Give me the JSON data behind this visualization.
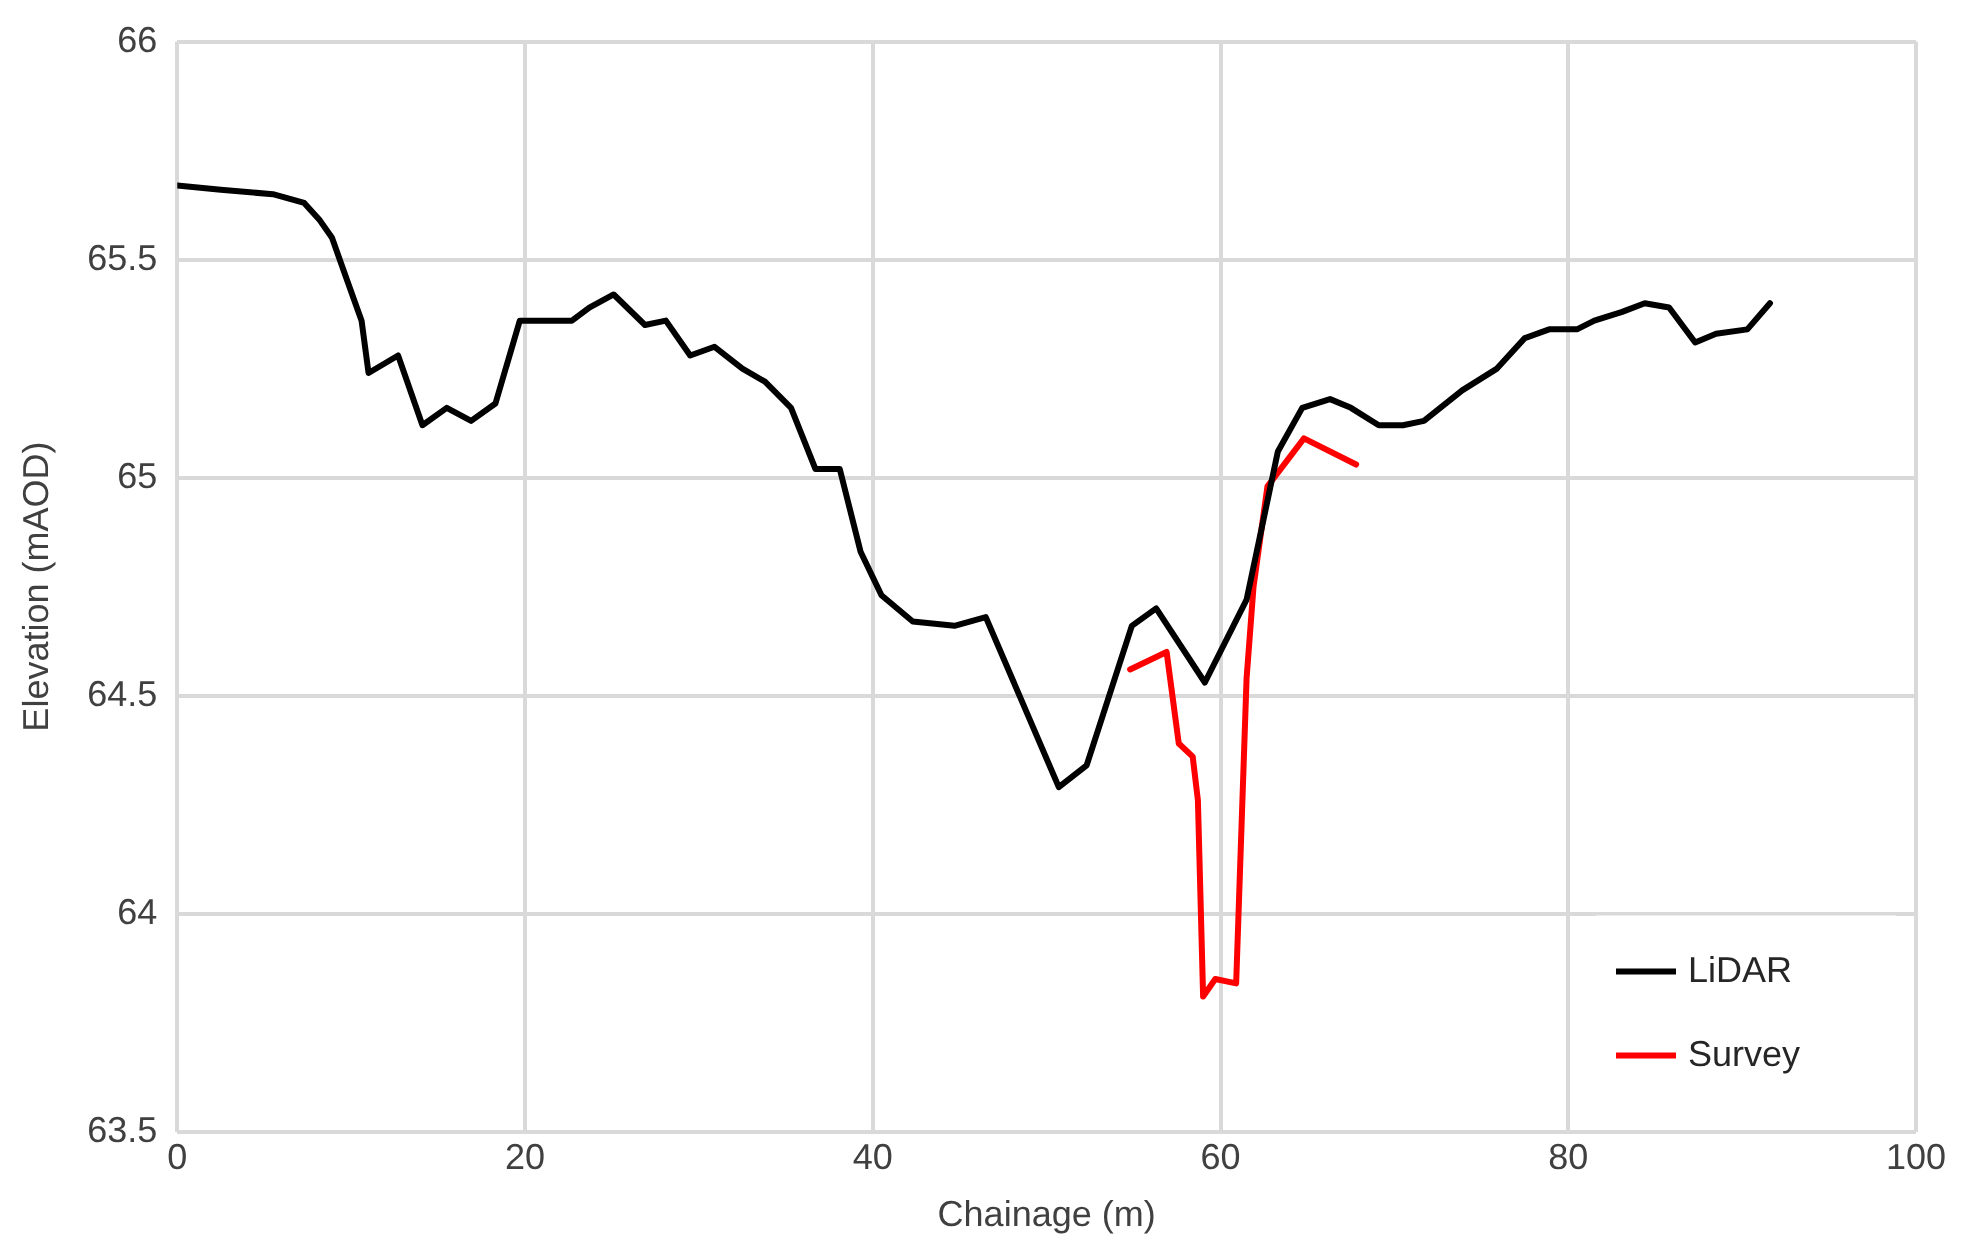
{
  "chart_data": {
    "type": "line",
    "xlabel": "Chainage (m)",
    "ylabel": "Elevation (mAOD)",
    "xlim": [
      0,
      100
    ],
    "xticks": [
      0,
      20,
      40,
      60,
      80,
      100
    ],
    "ylim": [
      63.5,
      66
    ],
    "yticks": [
      63.5,
      64,
      64.5,
      65,
      65.5,
      66
    ],
    "grid": true,
    "legend": "bottom right",
    "marker": "none",
    "line_style": "solid",
    "series": [
      {
        "name": "LiDAR",
        "color": "#000000",
        "x": [
          0,
          2.5,
          5.5,
          7.3,
          8.2,
          8.9,
          9.7,
          10.6,
          11.0,
          12.7,
          14.1,
          15.5,
          16.9,
          18.3,
          19.7,
          22.7,
          23.7,
          25.1,
          26.9,
          28.1,
          29.5,
          30.9,
          32.5,
          33.8,
          35.3,
          36.7,
          38.1,
          39.3,
          40.5,
          42.3,
          44.7,
          46.5,
          50.7,
          52.3,
          54.9,
          56.3,
          59.1,
          61.5,
          63.3,
          64.7,
          66.3,
          67.5,
          69.1,
          70.5,
          71.7,
          73.9,
          75.9,
          77.5,
          78.9,
          80.5,
          81.5,
          83.1,
          84.4,
          85.8,
          87.3,
          88.5,
          90.3,
          91.6
        ],
        "values": [
          65.67,
          65.66,
          65.65,
          65.63,
          65.59,
          65.55,
          65.46,
          65.36,
          65.24,
          65.28,
          65.12,
          65.16,
          65.13,
          65.17,
          65.36,
          65.36,
          65.39,
          65.42,
          65.35,
          65.36,
          65.28,
          65.3,
          65.25,
          65.22,
          65.16,
          65.02,
          65.02,
          64.83,
          64.73,
          64.67,
          64.66,
          64.68,
          64.29,
          64.34,
          64.66,
          64.7,
          64.53,
          64.72,
          65.06,
          65.16,
          65.18,
          65.16,
          65.12,
          65.12,
          65.13,
          65.2,
          65.25,
          65.32,
          65.34,
          65.34,
          65.36,
          65.38,
          65.4,
          65.39,
          65.31,
          65.33,
          65.34,
          65.4
        ]
      },
      {
        "name": "Survey",
        "color": "#ff0000",
        "x": [
          54.8,
          56.9,
          57.6,
          58.4,
          58.7,
          59.0,
          59.7,
          60.9,
          61.5,
          61.9,
          62.7,
          64.8,
          67.8
        ],
        "values": [
          64.56,
          64.6,
          64.39,
          64.36,
          64.26,
          63.81,
          63.85,
          63.84,
          64.54,
          64.75,
          64.98,
          65.09,
          65.03
        ]
      }
    ]
  }
}
